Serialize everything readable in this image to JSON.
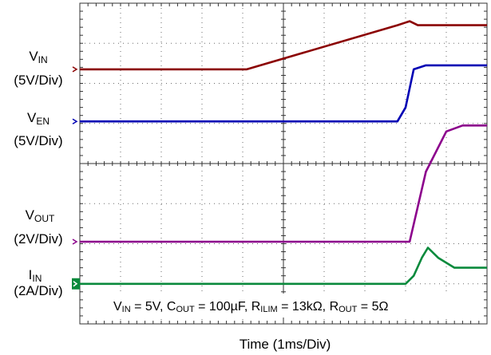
{
  "chart_data": {
    "type": "line",
    "title": "",
    "xlabel": "Time (1ms/Div)",
    "grid": true,
    "divisions": {
      "x": 10,
      "y": 8
    },
    "xlim": [
      0,
      10
    ],
    "ylim": [
      0,
      8
    ],
    "annotation": "V_IN = 5V, C_OUT = 100µF, R_ILIM = 13kΩ, R_OUT = 5Ω",
    "channels": [
      {
        "label": "VIN",
        "label_main": "V",
        "label_sub": "IN",
        "scale": "(5V/Div)",
        "color": "#8b0000",
        "x": [
          0,
          4.1,
          7.8,
          8.1,
          8.3,
          10
        ],
        "y_div": [
          1.65,
          1.65,
          0.55,
          0.45,
          0.55,
          0.55
        ]
      },
      {
        "label": "VEN",
        "label_main": "V",
        "label_sub": "EN",
        "scale": "(5V/Div)",
        "color": "#0000b4",
        "x": [
          0,
          7.8,
          8.0,
          8.2,
          8.5,
          10
        ],
        "y_div": [
          2.95,
          2.95,
          2.6,
          1.65,
          1.55,
          1.55
        ]
      },
      {
        "label": "VOUT",
        "label_main": "V",
        "label_sub": "OUT",
        "scale": "(2V/Div)",
        "color": "#8c008c",
        "x": [
          0,
          8.1,
          8.5,
          9.0,
          9.4,
          10
        ],
        "y_div": [
          5.95,
          5.95,
          4.2,
          3.2,
          3.05,
          3.05
        ]
      },
      {
        "label": "IIN",
        "label_main": "I",
        "label_sub": "IN",
        "scale": "(2A/Div)",
        "color": "#0a8a3c",
        "x": [
          0,
          8.0,
          8.2,
          8.4,
          8.55,
          8.8,
          9.2,
          10
        ],
        "y_div": [
          7.0,
          7.0,
          6.8,
          6.35,
          6.1,
          6.35,
          6.6,
          6.6
        ]
      }
    ]
  }
}
